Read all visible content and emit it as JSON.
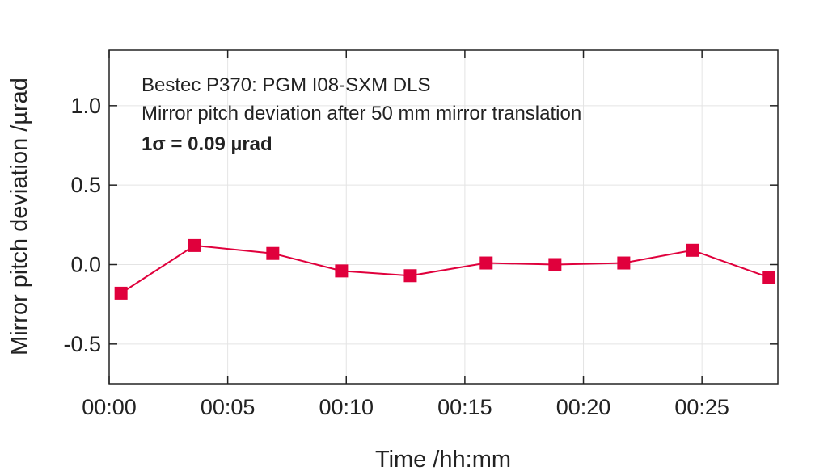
{
  "chart_data": {
    "type": "line",
    "xlabel": "Time /hh:mm",
    "ylabel": "Mirror pitch deviation /µrad",
    "annotations": [
      "Bestec P370: PGM I08-SXM DLS",
      "Mirror pitch deviation after 50 mm mirror translation",
      "1σ = 0.09 µrad"
    ],
    "x_unit": "minutes",
    "xlim": [
      0,
      28.2
    ],
    "ylim": [
      -0.75,
      1.35
    ],
    "x_ticks": [
      {
        "value": 0,
        "label": "00:00"
      },
      {
        "value": 5,
        "label": "00:05"
      },
      {
        "value": 10,
        "label": "00:10"
      },
      {
        "value": 15,
        "label": "00:15"
      },
      {
        "value": 20,
        "label": "00:20"
      },
      {
        "value": 25,
        "label": "00:25"
      }
    ],
    "y_ticks": [
      {
        "value": 1.0,
        "label": "1.0"
      },
      {
        "value": 0.5,
        "label": "0.5"
      },
      {
        "value": 0.0,
        "label": "0.0"
      },
      {
        "value": -0.5,
        "label": "-0.5"
      }
    ],
    "grid": true,
    "series": [
      {
        "color": "#e0003c",
        "marker": "square",
        "x": [
          0.5,
          3.6,
          6.9,
          9.8,
          12.7,
          15.9,
          18.8,
          21.7,
          24.6,
          27.8
        ],
        "y": [
          -0.18,
          0.12,
          0.07,
          -0.04,
          -0.07,
          0.01,
          0.0,
          0.01,
          0.09,
          -0.08
        ]
      }
    ]
  }
}
